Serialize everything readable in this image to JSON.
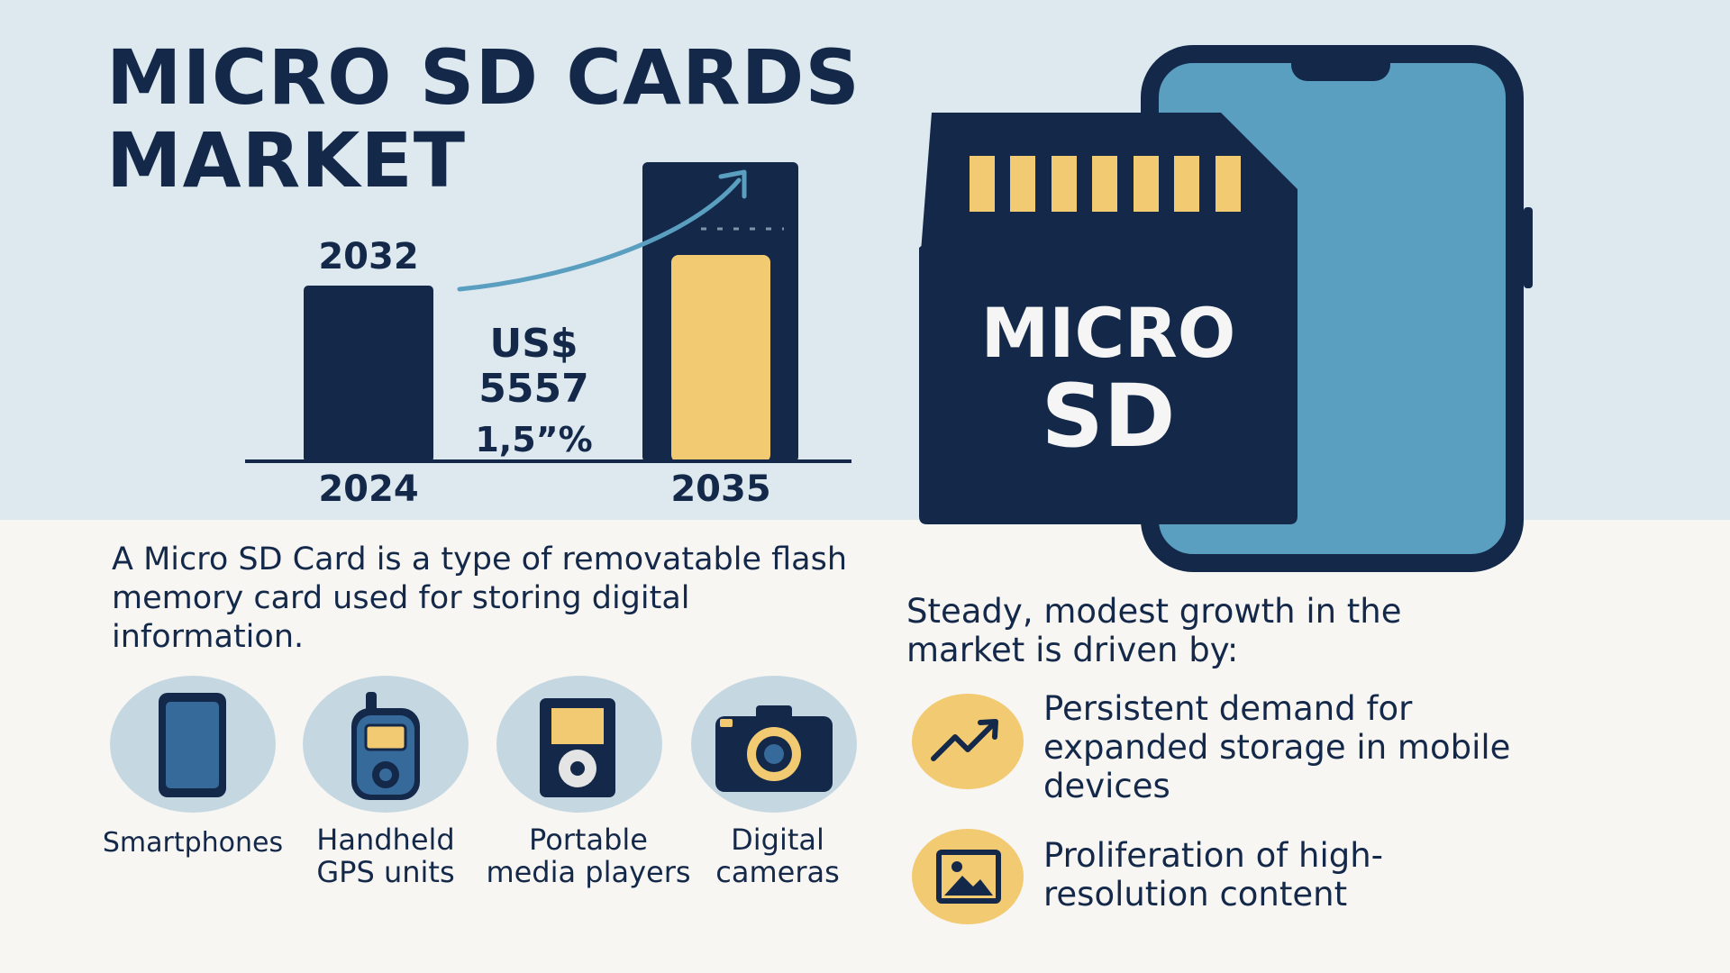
{
  "title": {
    "line1": "MICRO SD CARDS",
    "line2": "MARKET"
  },
  "chart": {
    "bar_left_top_label": "2032",
    "bar_left_bottom_label": "2024",
    "bar_right_bottom_label": "2035",
    "mid_currency": "US$",
    "mid_value": "5557",
    "mid_rate": "1,5”%"
  },
  "card": {
    "line1": "MICRO",
    "line2": "SD"
  },
  "description": "A Micro SD Card is a type of removatable flash memory card used for storing digital information.",
  "devices": [
    {
      "label_line1": "Smartphones",
      "label_line2": ""
    },
    {
      "label_line1": "Handheld",
      "label_line2": "GPS units"
    },
    {
      "label_line1": "Portable",
      "label_line2": "media players"
    },
    {
      "label_line1": "Digital",
      "label_line2": "cameras"
    }
  ],
  "drivers": {
    "heading": "Steady, modest growth in the market is driven by:",
    "items": [
      {
        "icon": "trend-up-icon",
        "text": "Persistent demand for expanded storage in mobile devices"
      },
      {
        "icon": "image-icon",
        "text": "Proliferation of high-resolution content"
      }
    ]
  },
  "colors": {
    "navy": "#14294a",
    "yellow": "#f2ca72",
    "sky": "#dde9ef",
    "phone_blue": "#5a9fc0",
    "cream": "#f8f6f2",
    "icon_circle": "#c5d8e2"
  }
}
